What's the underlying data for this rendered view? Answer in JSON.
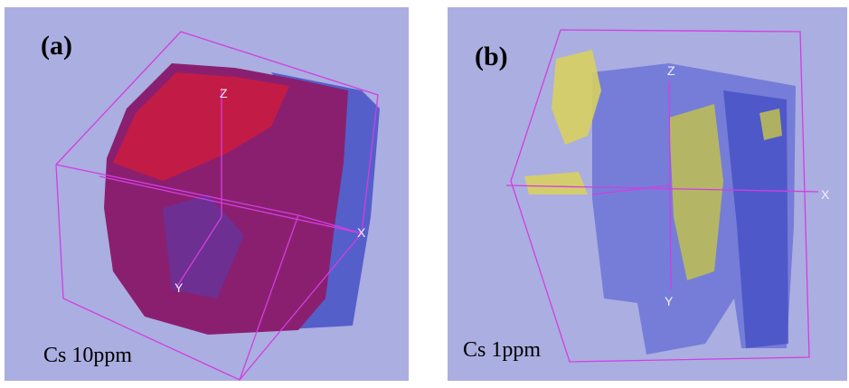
{
  "panels": [
    {
      "label": "(a)",
      "caption": "Cs 10ppm",
      "axes": {
        "z": "Z",
        "x": "X",
        "y": "Y"
      }
    },
    {
      "label": "(b)",
      "caption": "Cs 1ppm",
      "axes": {
        "z": "Z",
        "x": "X",
        "y": "Y"
      }
    }
  ]
}
